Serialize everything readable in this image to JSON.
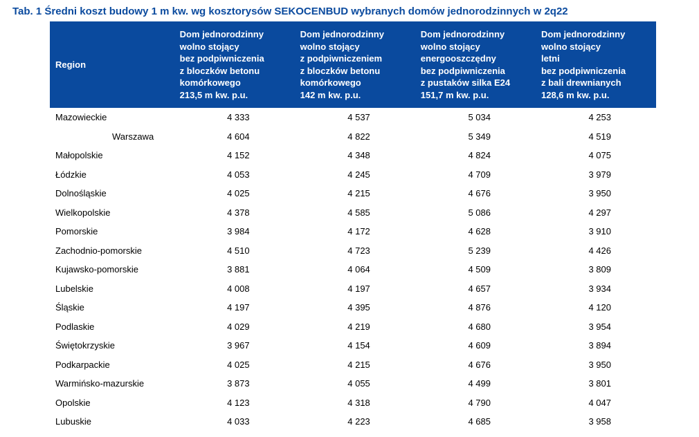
{
  "title": "Tab. 1 Średni koszt budowy 1 m kw. wg kosztorysów SEKOCENBUD wybranych domów jednorodzinnych w 2q22",
  "table": {
    "type": "table",
    "header_bg": "#0a4a9e",
    "header_fg": "#ffffff",
    "body_fg": "#000000",
    "background_color": "#ffffff",
    "title_color": "#0a4a9e",
    "font_size_body": 13,
    "title_font_size": 15,
    "region_header": "Region",
    "columns": [
      {
        "lines": [
          "Dom jednorodzinny",
          "wolno stojący",
          "bez podpiwniczenia",
          "z bloczków betonu",
          "komórkowego",
          "213,5 m kw. p.u."
        ]
      },
      {
        "lines": [
          "Dom jednorodzinny",
          "wolno stojący",
          "z podpiwniczeniem",
          "z bloczków betonu",
          "komórkowego",
          "142 m kw. p.u."
        ]
      },
      {
        "lines": [
          "Dom jednorodzinny",
          "wolno stojący",
          "energooszczędny",
          "bez podpiwniczenia",
          "z pustaków silka E24",
          "151,7 m kw. p.u."
        ]
      },
      {
        "lines": [
          "Dom jednorodzinny",
          "wolno stojący",
          "letni",
          "bez podpiwniczenia",
          "z bali drewnianych",
          "128,6 m kw. p.u."
        ]
      }
    ],
    "rows": [
      {
        "region": "Mazowieckie",
        "indent": false,
        "values": [
          "4 333",
          "4 537",
          "5 034",
          "4 253"
        ]
      },
      {
        "region": "Warszawa",
        "indent": true,
        "values": [
          "4 604",
          "4 822",
          "5 349",
          "4 519"
        ]
      },
      {
        "region": "Małopolskie",
        "indent": false,
        "values": [
          "4 152",
          "4 348",
          "4 824",
          "4 075"
        ]
      },
      {
        "region": "Łódzkie",
        "indent": false,
        "values": [
          "4 053",
          "4 245",
          "4 709",
          "3 979"
        ]
      },
      {
        "region": "Dolnośląskie",
        "indent": false,
        "values": [
          "4 025",
          "4 215",
          "4 676",
          "3 950"
        ]
      },
      {
        "region": "Wielkopolskie",
        "indent": false,
        "values": [
          "4 378",
          "4 585",
          "5 086",
          "4 297"
        ]
      },
      {
        "region": "Pomorskie",
        "indent": false,
        "values": [
          "3 984",
          "4 172",
          "4 628",
          "3 910"
        ]
      },
      {
        "region": "Zachodnio-pomorskie",
        "indent": false,
        "values": [
          "4 510",
          "4 723",
          "5 239",
          "4 426"
        ]
      },
      {
        "region": "Kujawsko-pomorskie",
        "indent": false,
        "values": [
          "3 881",
          "4 064",
          "4 509",
          "3 809"
        ]
      },
      {
        "region": "Lubelskie",
        "indent": false,
        "values": [
          "4 008",
          "4 197",
          "4 657",
          "3 934"
        ]
      },
      {
        "region": "Śląskie",
        "indent": false,
        "values": [
          "4 197",
          "4 395",
          "4 876",
          "4 120"
        ]
      },
      {
        "region": "Podlaskie",
        "indent": false,
        "values": [
          "4 029",
          "4 219",
          "4 680",
          "3 954"
        ]
      },
      {
        "region": "Świętokrzyskie",
        "indent": false,
        "values": [
          "3 967",
          "4 154",
          "4 609",
          "3 894"
        ]
      },
      {
        "region": "Podkarpackie",
        "indent": false,
        "values": [
          "4 025",
          "4 215",
          "4 676",
          "3 950"
        ]
      },
      {
        "region": "Warmińsko-mazurskie",
        "indent": false,
        "values": [
          "3 873",
          "4 055",
          "4 499",
          "3 801"
        ]
      },
      {
        "region": "Opolskie",
        "indent": false,
        "values": [
          "4 123",
          "4 318",
          "4 790",
          "4 047"
        ]
      },
      {
        "region": "Lubuskie",
        "indent": false,
        "values": [
          "4 033",
          "4 223",
          "4 685",
          "3 958"
        ]
      }
    ]
  }
}
